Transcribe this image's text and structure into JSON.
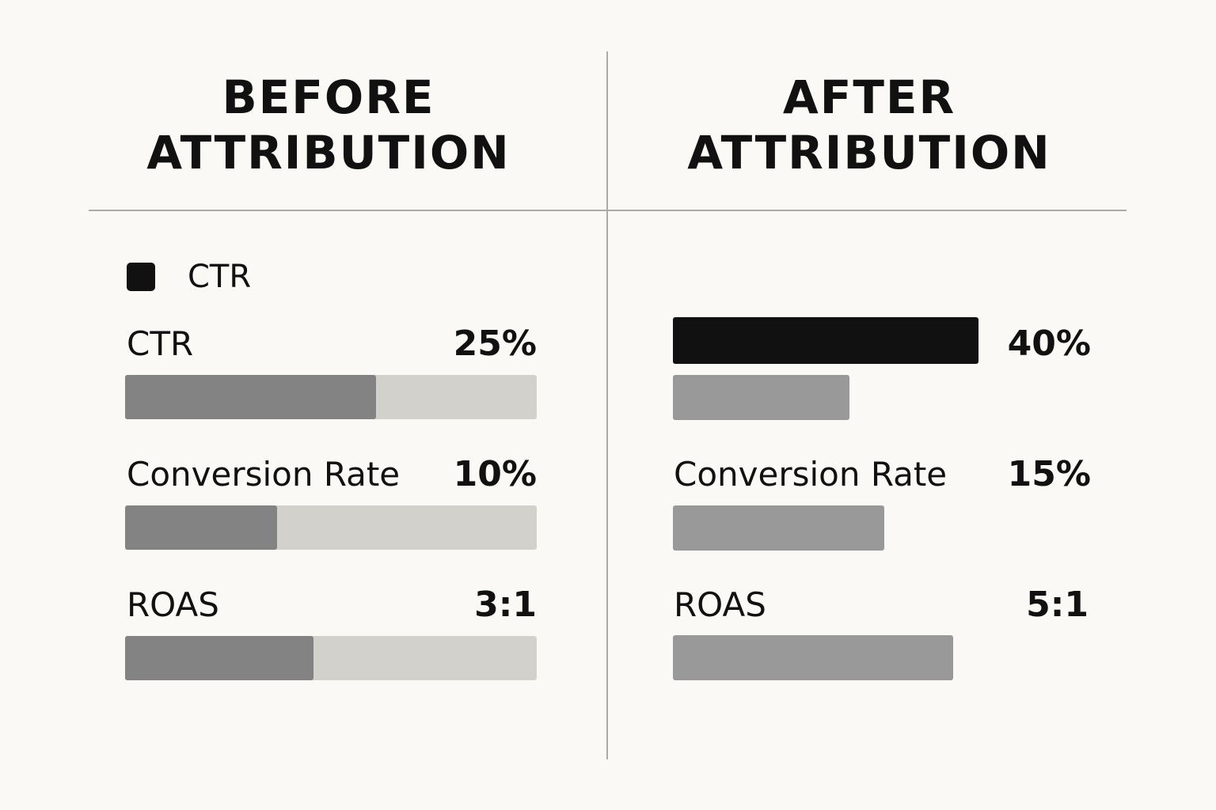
{
  "panels": [
    {
      "title": [
        "BEFORE",
        "ATTRIBUTION"
      ],
      "legend": "CTR",
      "metrics": [
        {
          "label": "CTR",
          "value": "25%"
        },
        {
          "label": "Conversion Rate",
          "value": "10%"
        },
        {
          "label": "ROAS",
          "value": "3:1"
        }
      ]
    },
    {
      "title": [
        "AFTER",
        "ATTRIBUTION"
      ],
      "metrics": [
        {
          "value": "40%"
        },
        {
          "label": "Conversion Rate",
          "value": "15%"
        },
        {
          "label": "ROAS",
          "value": "5:1"
        }
      ]
    }
  ]
}
